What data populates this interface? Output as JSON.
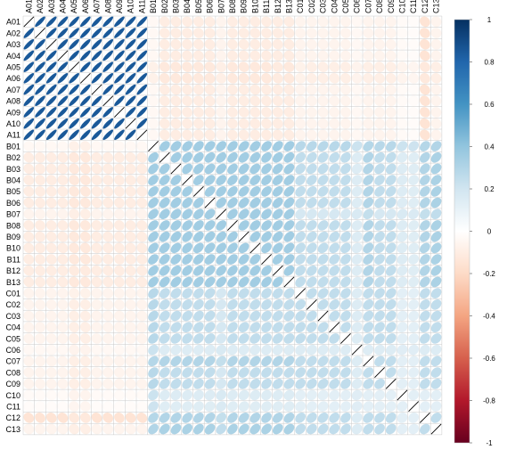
{
  "chart_data": {
    "type": "heatmap",
    "style": "correlation-ellipse-matrix",
    "title": "",
    "variables": [
      "A01",
      "A02",
      "A03",
      "A04",
      "A05",
      "A06",
      "A07",
      "A08",
      "A09",
      "A10",
      "A11",
      "B01",
      "B02",
      "B03",
      "B04",
      "B05",
      "B06",
      "B07",
      "B08",
      "B09",
      "B10",
      "B11",
      "B12",
      "B13",
      "C01",
      "C02",
      "C03",
      "C04",
      "C05",
      "C06",
      "C07",
      "C08",
      "C09",
      "C10",
      "C11",
      "C12",
      "C13"
    ],
    "diagonal": 1.0,
    "groups": [
      {
        "name": "A",
        "members": [
          "A01",
          "A02",
          "A03",
          "A04",
          "A05",
          "A06",
          "A07",
          "A08",
          "A09",
          "A10",
          "A11"
        ],
        "within_r": 0.85
      },
      {
        "name": "B",
        "members": [
          "B01",
          "B02",
          "B03",
          "B04",
          "B05",
          "B06",
          "B07",
          "B08",
          "B09",
          "B10",
          "B11",
          "B12",
          "B13"
        ],
        "within_r": 0.35
      },
      {
        "name": "C",
        "members": [
          "C01",
          "C02",
          "C03",
          "C04",
          "C05",
          "C06",
          "C07",
          "C08",
          "C09",
          "C10",
          "C11",
          "C12",
          "C13"
        ],
        "within_r": 0.25
      }
    ],
    "between_groups": {
      "A-B": -0.1,
      "A-C": -0.06,
      "B-C": 0.25
    },
    "variable_overrides": {
      "A05": {
        "B": -0.12,
        "C": -0.09
      },
      "A06": {
        "B": -0.12,
        "C": -0.09
      },
      "B01": {
        "A": -0.04,
        "C": 0.28
      },
      "B07": {
        "A": -0.06,
        "C": 0.18
      },
      "B12": {
        "A": -0.1
      },
      "C01": {
        "A": -0.06
      },
      "C06": {
        "A": -0.04,
        "B": 0.15,
        "C": 0.15
      },
      "C07": {
        "B": 0.3
      },
      "C10": {
        "A": -0.03,
        "B": 0.15,
        "C": 0.12
      },
      "C11": {
        "A": -0.02,
        "B": 0.14,
        "C": 0.12
      },
      "C12": {
        "A": -0.15,
        "B": 0.3
      },
      "C13": {
        "B": 0.32
      }
    },
    "colorbar": {
      "range": [
        -1,
        1
      ],
      "ticks": [
        1,
        0.8,
        0.6,
        0.4,
        0.2,
        0,
        -0.2,
        -0.4,
        -0.6,
        -0.8,
        -1
      ],
      "tick_labels": [
        "1",
        "0.8",
        "0.6",
        "0.4",
        "0.2",
        "0",
        "-0.2",
        "-0.4",
        "-0.6",
        "-0.8",
        "-1"
      ],
      "colors": [
        "#67001F",
        "#B2182B",
        "#D6604D",
        "#F4A582",
        "#FDDBC7",
        "#FFFFFF",
        "#D1E5F0",
        "#92C5DE",
        "#4393C3",
        "#2166AC",
        "#053061"
      ]
    },
    "grid": true,
    "legend_position": "right"
  }
}
